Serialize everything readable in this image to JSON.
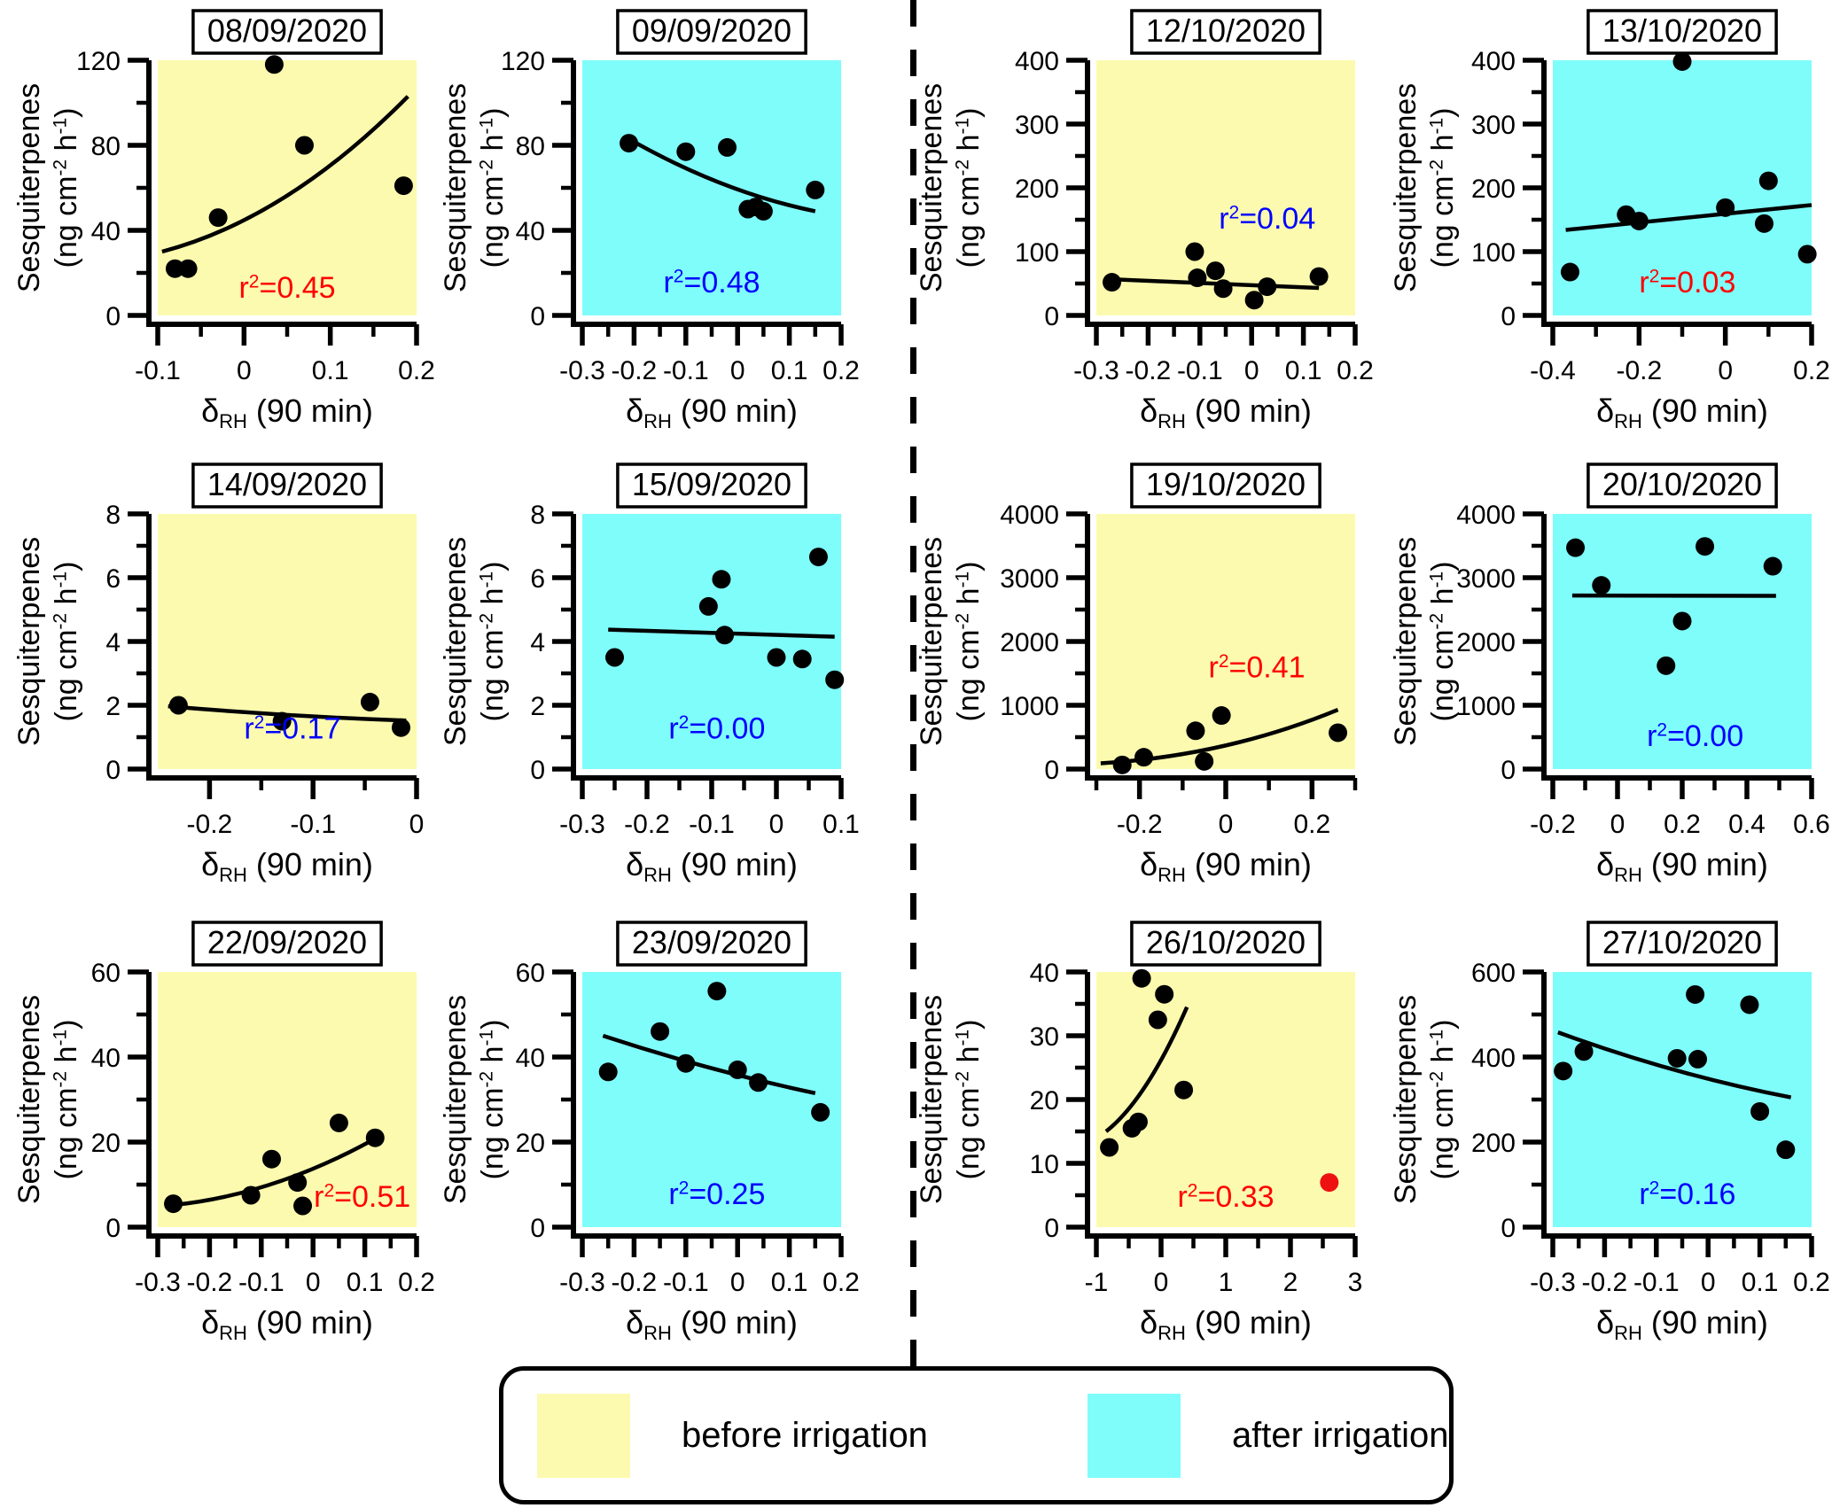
{
  "figure": {
    "description": "Sesquiterpene emission rates versus relative-humidity change before and after irrigation",
    "ylabel_line1": "Sesquiterpenes",
    "ylabel_line2": "(ng cm^{-2} h^{-1})",
    "xlabel": "δ_{RH} (90 min)"
  },
  "colors": {
    "before_bg": "#FCFAAF",
    "after_bg": "#7FFDFB",
    "r2_red": "#FF0000",
    "r2_blue": "#0000FF",
    "point_black": "#000000",
    "point_red": "#EE1111",
    "axis_black": "#000000"
  },
  "legend": {
    "before_label": "before irrigation",
    "after_label": "after irrigation"
  },
  "chart_data": [
    {
      "type": "scatter",
      "title": "08/09/2020",
      "phase": "before",
      "r2": 0.45,
      "r2_label": "r^{2}=0.45",
      "r2_color": "red",
      "r2_fx": 0.5,
      "r2_fy": 0.93,
      "xlim": [
        -0.1,
        0.2
      ],
      "xticks": [
        -0.1,
        0,
        0.1,
        0.2
      ],
      "xtick_labels": [
        "-0.1",
        "0",
        "0.1",
        "0.2"
      ],
      "xminor": [
        -0.05,
        0.05,
        0.15
      ],
      "ylim": [
        0,
        120
      ],
      "yticks": [
        0,
        40,
        80,
        120
      ],
      "ytick_labels": [
        "0",
        "40",
        "80",
        "120"
      ],
      "yminor": [
        20,
        60,
        100
      ],
      "points": [
        [
          -0.08,
          22
        ],
        [
          -0.065,
          22
        ],
        [
          -0.03,
          46
        ],
        [
          0.035,
          118
        ],
        [
          0.07,
          80
        ],
        [
          0.185,
          61
        ]
      ],
      "red_points": [],
      "trend": {
        "p0": [
          -0.095,
          30
        ],
        "c": [
          0.05,
          45.5
        ],
        "p1": [
          0.19,
          103
        ]
      }
    },
    {
      "type": "scatter",
      "title": "09/09/2020",
      "phase": "after",
      "r2": 0.48,
      "r2_label": "r^{2}=0.48",
      "r2_color": "blue",
      "r2_fx": 0.5,
      "r2_fy": 0.91,
      "xlim": [
        -0.3,
        0.2
      ],
      "xticks": [
        -0.3,
        -0.2,
        -0.1,
        0,
        0.1,
        0.2
      ],
      "xtick_labels": [
        "-0.3",
        "-0.2",
        "-0.1",
        "0",
        "0.1",
        "0.2"
      ],
      "xminor": [
        -0.25,
        -0.15,
        -0.05,
        0.05,
        0.15
      ],
      "ylim": [
        0,
        120
      ],
      "yticks": [
        0,
        40,
        80,
        120
      ],
      "ytick_labels": [
        "0",
        "40",
        "80",
        "120"
      ],
      "yminor": [
        20,
        60,
        100
      ],
      "points": [
        [
          -0.21,
          81
        ],
        [
          -0.1,
          77
        ],
        [
          -0.02,
          79
        ],
        [
          0.02,
          50
        ],
        [
          0.035,
          51
        ],
        [
          0.05,
          49
        ],
        [
          0.15,
          59
        ]
      ],
      "red_points": [],
      "trend": {
        "p0": [
          -0.21,
          83
        ],
        "c": [
          -0.03,
          58
        ],
        "p1": [
          0.15,
          49
        ]
      }
    },
    {
      "type": "scatter",
      "title": "12/10/2020",
      "phase": "before",
      "r2": 0.04,
      "r2_label": "r^{2}=0.04",
      "r2_color": "blue",
      "r2_fx": 0.66,
      "r2_fy": 0.66,
      "xlim": [
        -0.3,
        0.2
      ],
      "xticks": [
        -0.3,
        -0.2,
        -0.1,
        0,
        0.1,
        0.2
      ],
      "xtick_labels": [
        "-0.3",
        "-0.2",
        "-0.1",
        "0",
        "0.1",
        "0.2"
      ],
      "xminor": [
        -0.25,
        -0.15,
        -0.05,
        0.05,
        0.15
      ],
      "ylim": [
        0,
        400
      ],
      "yticks": [
        0,
        100,
        200,
        300,
        400
      ],
      "ytick_labels": [
        "0",
        "100",
        "200",
        "300",
        "400"
      ],
      "yminor": [
        50,
        150,
        250,
        350
      ],
      "points": [
        [
          -0.27,
          52
        ],
        [
          -0.11,
          100
        ],
        [
          -0.105,
          59
        ],
        [
          -0.07,
          70
        ],
        [
          -0.055,
          42
        ],
        [
          0.005,
          24
        ],
        [
          0.03,
          45
        ],
        [
          0.13,
          61
        ]
      ],
      "red_points": [],
      "trend": {
        "p0": [
          -0.28,
          57
        ],
        "p1": [
          0.13,
          43
        ]
      }
    },
    {
      "type": "scatter",
      "title": "13/10/2020",
      "phase": "after",
      "r2": 0.03,
      "r2_label": "r^{2}=0.03",
      "r2_color": "red",
      "r2_fx": 0.52,
      "r2_fy": 0.91,
      "xlim": [
        -0.4,
        0.2
      ],
      "xticks": [
        -0.4,
        -0.2,
        0,
        0.2
      ],
      "xtick_labels": [
        "-0.4",
        "-0.2",
        "0",
        "0.2"
      ],
      "xminor": [
        -0.3,
        -0.1,
        0.1
      ],
      "ylim": [
        0,
        400
      ],
      "yticks": [
        0,
        100,
        200,
        300,
        400
      ],
      "ytick_labels": [
        "0",
        "100",
        "200",
        "300",
        "400"
      ],
      "yminor": [
        50,
        150,
        250,
        350
      ],
      "points": [
        [
          -0.36,
          68
        ],
        [
          -0.23,
          158
        ],
        [
          -0.2,
          148
        ],
        [
          -0.1,
          398
        ],
        [
          0.0,
          169
        ],
        [
          0.09,
          144
        ],
        [
          0.1,
          211
        ],
        [
          0.19,
          96
        ]
      ],
      "red_points": [],
      "trend": {
        "p0": [
          -0.37,
          134
        ],
        "p1": [
          0.2,
          173
        ]
      }
    },
    {
      "type": "scatter",
      "title": "14/09/2020",
      "phase": "before",
      "r2": 0.17,
      "r2_label": "r^{2}=0.17",
      "r2_color": "blue",
      "r2_fx": 0.52,
      "r2_fy": 0.88,
      "xlim": [
        -0.25,
        0
      ],
      "xticks": [
        -0.2,
        -0.1,
        0
      ],
      "xtick_labels": [
        "-0.2",
        "-0.1",
        "0"
      ],
      "xminor": [
        -0.15,
        -0.05
      ],
      "ylim": [
        0,
        8
      ],
      "yticks": [
        0,
        2,
        4,
        6,
        8
      ],
      "ytick_labels": [
        "0",
        "2",
        "4",
        "6",
        "8"
      ],
      "yminor": [
        1,
        3,
        5,
        7
      ],
      "points": [
        [
          -0.23,
          2.0
        ],
        [
          -0.13,
          1.5
        ],
        [
          -0.045,
          2.1
        ],
        [
          -0.015,
          1.3
        ]
      ],
      "red_points": [],
      "trend": {
        "p0": [
          -0.24,
          1.97
        ],
        "c": [
          -0.125,
          1.65
        ],
        "p1": [
          -0.01,
          1.52
        ]
      }
    },
    {
      "type": "scatter",
      "title": "15/09/2020",
      "phase": "after",
      "r2": 0.0,
      "r2_label": "r^{2}=0.00",
      "r2_color": "blue",
      "r2_fx": 0.52,
      "r2_fy": 0.88,
      "xlim": [
        -0.3,
        0.1
      ],
      "xticks": [
        -0.3,
        -0.2,
        -0.1,
        0,
        0.1
      ],
      "xtick_labels": [
        "-0.3",
        "-0.2",
        "-0.1",
        "0",
        "0.1"
      ],
      "xminor": [
        -0.25,
        -0.15,
        -0.05,
        0.05
      ],
      "ylim": [
        0,
        8
      ],
      "yticks": [
        0,
        2,
        4,
        6,
        8
      ],
      "ytick_labels": [
        "0",
        "2",
        "4",
        "6",
        "8"
      ],
      "yminor": [
        1,
        3,
        5,
        7
      ],
      "points": [
        [
          -0.25,
          3.5
        ],
        [
          -0.105,
          5.1
        ],
        [
          -0.085,
          5.95
        ],
        [
          -0.08,
          4.2
        ],
        [
          0.0,
          3.5
        ],
        [
          0.04,
          3.45
        ],
        [
          0.065,
          6.65
        ],
        [
          0.09,
          2.8
        ]
      ],
      "red_points": [],
      "trend": {
        "p0": [
          -0.26,
          4.37
        ],
        "p1": [
          0.09,
          4.15
        ]
      }
    },
    {
      "type": "scatter",
      "title": "19/10/2020",
      "phase": "before",
      "r2": 0.41,
      "r2_label": "r^{2}=0.41",
      "r2_color": "red",
      "r2_fx": 0.62,
      "r2_fy": 0.64,
      "xlim": [
        -0.3,
        0.3
      ],
      "xticks": [
        -0.2,
        0,
        0.2
      ],
      "xtick_labels": [
        "-0.2",
        "0",
        "0.2"
      ],
      "xminor": [
        -0.3,
        -0.1,
        0.1,
        0.3
      ],
      "ylim": [
        0,
        4000
      ],
      "yticks": [
        0,
        1000,
        2000,
        3000,
        4000
      ],
      "ytick_labels": [
        "0",
        "1000",
        "2000",
        "3000",
        "4000"
      ],
      "yminor": [
        500,
        1500,
        2500,
        3500
      ],
      "points": [
        [
          -0.24,
          65
        ],
        [
          -0.19,
          185
        ],
        [
          -0.07,
          600
        ],
        [
          -0.05,
          120
        ],
        [
          -0.01,
          840
        ],
        [
          0.26,
          570
        ]
      ],
      "red_points": [],
      "trend": {
        "p0": [
          -0.29,
          90
        ],
        "c": [
          0.0,
          207
        ],
        "p1": [
          0.26,
          930
        ]
      }
    },
    {
      "type": "scatter",
      "title": "20/10/2020",
      "phase": "after",
      "r2": 0.0,
      "r2_label": "r^{2}=0.00",
      "r2_color": "blue",
      "r2_fx": 0.55,
      "r2_fy": 0.91,
      "xlim": [
        -0.2,
        0.6
      ],
      "xticks": [
        -0.2,
        0,
        0.2,
        0.4,
        0.6
      ],
      "xtick_labels": [
        "-0.2",
        "0",
        "0.2",
        "0.4",
        "0.6"
      ],
      "xminor": [
        -0.1,
        0.1,
        0.3,
        0.5
      ],
      "ylim": [
        0,
        4000
      ],
      "yticks": [
        0,
        1000,
        2000,
        3000,
        4000
      ],
      "ytick_labels": [
        "0",
        "1000",
        "2000",
        "3000",
        "4000"
      ],
      "yminor": [
        500,
        1500,
        2500,
        3500
      ],
      "points": [
        [
          -0.13,
          3470
        ],
        [
          -0.05,
          2880
        ],
        [
          0.15,
          1620
        ],
        [
          0.2,
          2320
        ],
        [
          0.27,
          3490
        ],
        [
          0.48,
          3180
        ]
      ],
      "red_points": [],
      "trend": {
        "p0": [
          -0.14,
          2720
        ],
        "p1": [
          0.49,
          2715
        ]
      }
    },
    {
      "type": "scatter",
      "title": "22/09/2020",
      "phase": "before",
      "r2": 0.51,
      "r2_label": "r^{2}=0.51",
      "r2_color": "red",
      "r2_fx": 0.79,
      "r2_fy": 0.92,
      "xlim": [
        -0.3,
        0.2
      ],
      "xticks": [
        -0.3,
        -0.2,
        -0.1,
        0,
        0.1,
        0.2
      ],
      "xtick_labels": [
        "-0.3",
        "-0.2",
        "-0.1",
        "0",
        "0.1",
        "0.2"
      ],
      "xminor": [
        -0.25,
        -0.15,
        -0.05,
        0.05,
        0.15
      ],
      "ylim": [
        0,
        60
      ],
      "yticks": [
        0,
        20,
        40,
        60
      ],
      "ytick_labels": [
        "0",
        "20",
        "40",
        "60"
      ],
      "yminor": [
        10,
        30,
        50
      ],
      "points": [
        [
          -0.27,
          5.5
        ],
        [
          -0.12,
          7.5
        ],
        [
          -0.08,
          16
        ],
        [
          -0.03,
          10.5
        ],
        [
          -0.02,
          5
        ],
        [
          0.05,
          24.5
        ],
        [
          0.12,
          21
        ]
      ],
      "red_points": [],
      "trend": {
        "p0": [
          -0.27,
          5.2
        ],
        "c": [
          -0.07,
          7.7
        ],
        "p1": [
          0.13,
          21.5
        ]
      }
    },
    {
      "type": "scatter",
      "title": "23/09/2020",
      "phase": "after",
      "r2": 0.25,
      "r2_label": "r^{2}=0.25",
      "r2_color": "blue",
      "r2_fx": 0.52,
      "r2_fy": 0.91,
      "xlim": [
        -0.3,
        0.2
      ],
      "xticks": [
        -0.3,
        -0.2,
        -0.1,
        0,
        0.1,
        0.2
      ],
      "xtick_labels": [
        "-0.3",
        "-0.2",
        "-0.1",
        "0",
        "0.1",
        "0.2"
      ],
      "xminor": [
        -0.25,
        -0.15,
        -0.05,
        0.05,
        0.15
      ],
      "ylim": [
        0,
        60
      ],
      "yticks": [
        0,
        20,
        40,
        60
      ],
      "ytick_labels": [
        "0",
        "20",
        "40",
        "60"
      ],
      "yminor": [
        10,
        30,
        50
      ],
      "points": [
        [
          -0.25,
          36.5
        ],
        [
          -0.15,
          46
        ],
        [
          -0.1,
          38.5
        ],
        [
          -0.04,
          55.5
        ],
        [
          0.0,
          37
        ],
        [
          0.04,
          34
        ],
        [
          0.16,
          27
        ]
      ],
      "red_points": [],
      "trend": {
        "p0": [
          -0.26,
          45
        ],
        "c": [
          -0.055,
          36.8
        ],
        "p1": [
          0.15,
          31.5
        ]
      }
    },
    {
      "type": "scatter",
      "title": "26/10/2020",
      "phase": "before",
      "r2": 0.33,
      "r2_label": "r^{2}=0.33",
      "r2_color": "red",
      "r2_fx": 0.5,
      "r2_fy": 0.92,
      "xlim": [
        -1,
        3
      ],
      "xticks": [
        -1,
        0,
        1,
        2,
        3
      ],
      "xtick_labels": [
        "-1",
        "0",
        "1",
        "2",
        "3"
      ],
      "xminor": [
        -0.5,
        0.5,
        1.5,
        2.5
      ],
      "ylim": [
        0,
        40
      ],
      "yticks": [
        0,
        10,
        20,
        30,
        40
      ],
      "ytick_labels": [
        "0",
        "10",
        "20",
        "30",
        "40"
      ],
      "yminor": [
        5,
        15,
        25,
        35
      ],
      "points": [
        [
          -0.8,
          12.5
        ],
        [
          -0.45,
          15.5
        ],
        [
          -0.35,
          16.5
        ],
        [
          -0.3,
          39
        ],
        [
          -0.05,
          32.5
        ],
        [
          0.05,
          36.5
        ],
        [
          0.35,
          21.5
        ]
      ],
      "red_points": [
        [
          2.6,
          7
        ]
      ],
      "trend": {
        "p0": [
          -0.85,
          15
        ],
        "c": [
          -0.225,
          20
        ],
        "p1": [
          0.4,
          34.5
        ]
      }
    },
    {
      "type": "scatter",
      "title": "27/10/2020",
      "phase": "after",
      "r2": 0.16,
      "r2_label": "r^{2}=0.16",
      "r2_color": "blue",
      "r2_fx": 0.52,
      "r2_fy": 0.91,
      "xlim": [
        -0.3,
        0.2
      ],
      "xticks": [
        -0.3,
        -0.2,
        -0.1,
        0,
        0.1,
        0.2
      ],
      "xtick_labels": [
        "-0.3",
        "-0.2",
        "-0.1",
        "0",
        "0.1",
        "0.2"
      ],
      "xminor": [
        -0.25,
        -0.15,
        -0.05,
        0.05,
        0.15
      ],
      "ylim": [
        0,
        600
      ],
      "yticks": [
        0,
        200,
        400,
        600
      ],
      "ytick_labels": [
        "0",
        "200",
        "400",
        "600"
      ],
      "yminor": [
        100,
        300,
        500
      ],
      "points": [
        [
          -0.28,
          367
        ],
        [
          -0.24,
          413
        ],
        [
          -0.06,
          397
        ],
        [
          -0.025,
          547
        ],
        [
          -0.02,
          395
        ],
        [
          0.08,
          523
        ],
        [
          0.1,
          272
        ],
        [
          0.15,
          182
        ]
      ],
      "red_points": [],
      "trend": {
        "p0": [
          -0.29,
          458
        ],
        "c": [
          -0.065,
          358
        ],
        "p1": [
          0.16,
          305
        ]
      }
    }
  ]
}
